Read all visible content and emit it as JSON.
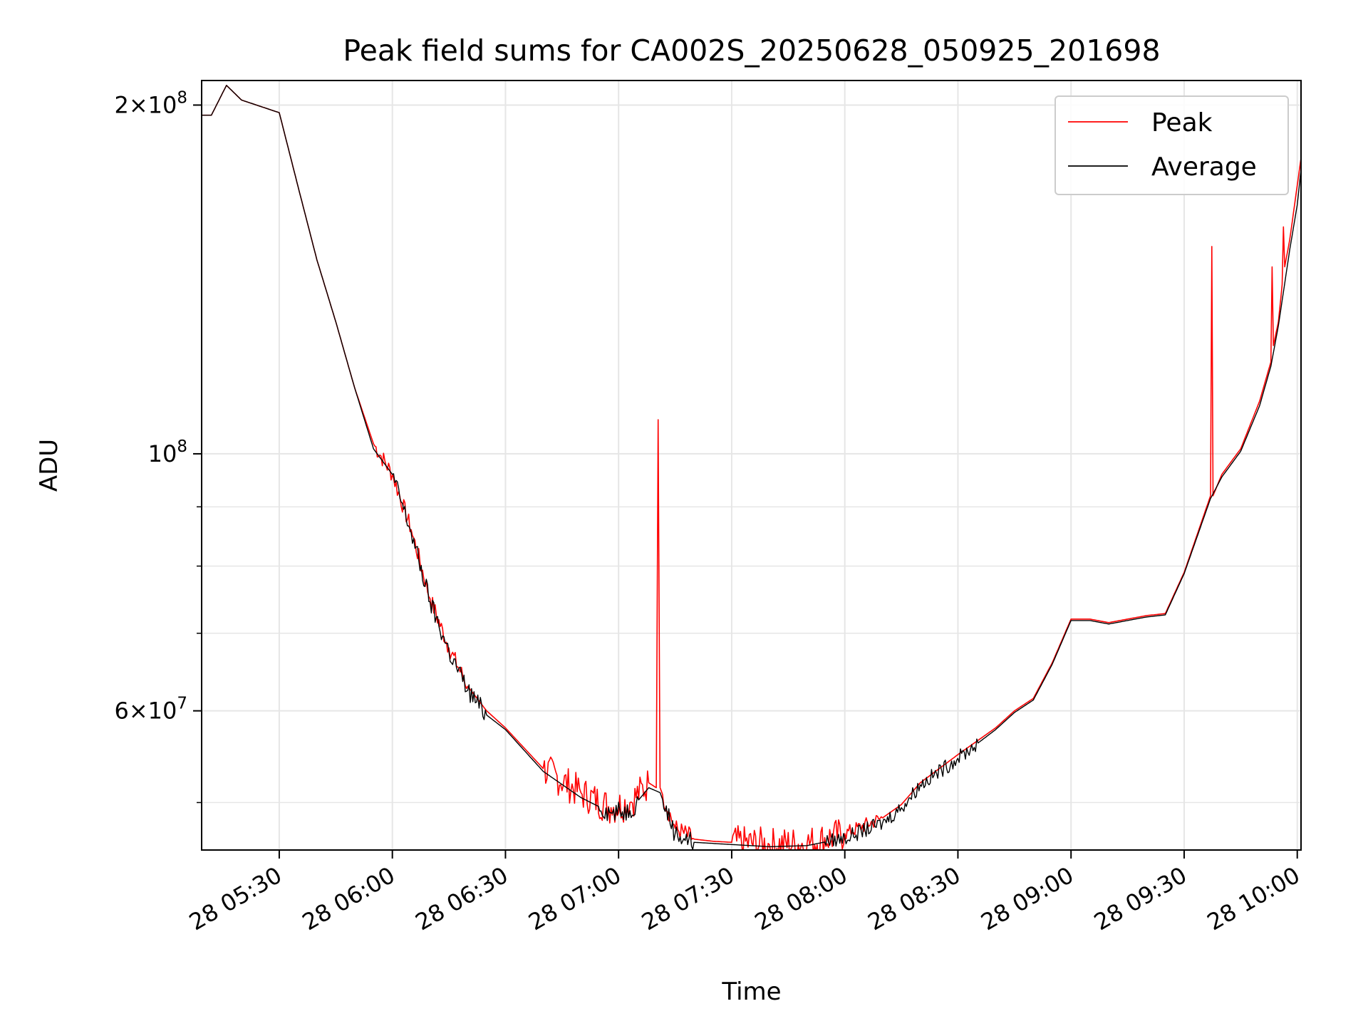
{
  "chart_data": {
    "type": "line",
    "title": "Peak field sums for CA002S_20250628_050925_201698",
    "xlabel": "Time",
    "ylabel": "ADU",
    "yscale": "log",
    "xlim": [
      "2025-06-28 05:09:25",
      "2025-06-28 10:01:00"
    ],
    "ylim": [
      45500000,
      210000000
    ],
    "grid": true,
    "legend_position": "top-right",
    "x_ticks": [
      {
        "t": "2025-06-28 05:30",
        "label": "28 05:30"
      },
      {
        "t": "2025-06-28 06:00",
        "label": "28 06:00"
      },
      {
        "t": "2025-06-28 06:30",
        "label": "28 06:30"
      },
      {
        "t": "2025-06-28 07:00",
        "label": "28 07:00"
      },
      {
        "t": "2025-06-28 07:30",
        "label": "28 07:30"
      },
      {
        "t": "2025-06-28 08:00",
        "label": "28 08:00"
      },
      {
        "t": "2025-06-28 08:30",
        "label": "28 08:30"
      },
      {
        "t": "2025-06-28 09:00",
        "label": "28 09:00"
      },
      {
        "t": "2025-06-28 09:30",
        "label": "28 09:30"
      },
      {
        "t": "2025-06-28 10:00",
        "label": "28 10:00"
      }
    ],
    "y_major_ticks": [
      {
        "value": 60000000,
        "mantissa": "6",
        "base": "10",
        "exp": "7"
      },
      {
        "value": 100000000,
        "mantissa": "",
        "base": "10",
        "exp": "8"
      },
      {
        "value": 200000000,
        "mantissa": "2",
        "base": "10",
        "exp": "8"
      }
    ],
    "y_minor_ticks": [
      50000000,
      70000000,
      80000000,
      90000000
    ],
    "series": [
      {
        "name": "Peak",
        "color": "#ff0000",
        "x": [
          "2025-06-28 05:09:25",
          "2025-06-28 05:12:00",
          "2025-06-28 05:16:00",
          "2025-06-28 05:20:00",
          "2025-06-28 05:30:00",
          "2025-06-28 05:35:00",
          "2025-06-28 05:40:00",
          "2025-06-28 05:45:00",
          "2025-06-28 05:50:00",
          "2025-06-28 05:55:00",
          "2025-06-28 06:00:00",
          "2025-06-28 06:05:00",
          "2025-06-28 06:10:00",
          "2025-06-28 06:15:00",
          "2025-06-28 06:20:00",
          "2025-06-28 06:25:00",
          "2025-06-28 06:30:00",
          "2025-06-28 06:40:00",
          "2025-06-28 06:50:00",
          "2025-06-28 06:58:00",
          "2025-06-28 07:03:00",
          "2025-06-28 07:08:00",
          "2025-06-28 07:10:00",
          "2025-06-28 07:10:30",
          "2025-06-28 07:11:00",
          "2025-06-28 07:15:00",
          "2025-06-28 07:20:00",
          "2025-06-28 07:25:00",
          "2025-06-28 07:30:00",
          "2025-06-28 07:40:00",
          "2025-06-28 07:50:00",
          "2025-06-28 08:00:00",
          "2025-06-28 08:10:00",
          "2025-06-28 08:15:00",
          "2025-06-28 08:20:00",
          "2025-06-28 08:30:00",
          "2025-06-28 08:40:00",
          "2025-06-28 08:45:00",
          "2025-06-28 08:50:00",
          "2025-06-28 08:55:00",
          "2025-06-28 09:00:00",
          "2025-06-28 09:05:00",
          "2025-06-28 09:10:00",
          "2025-06-28 09:20:00",
          "2025-06-28 09:25:00",
          "2025-06-28 09:30:00",
          "2025-06-28 09:37:00",
          "2025-06-28 09:37:20",
          "2025-06-28 09:37:40",
          "2025-06-28 09:40:00",
          "2025-06-28 09:45:00",
          "2025-06-28 09:50:00",
          "2025-06-28 09:53:00",
          "2025-06-28 09:53:20",
          "2025-06-28 09:53:40",
          "2025-06-28 09:55:00",
          "2025-06-28 09:56:00",
          "2025-06-28 09:56:20",
          "2025-06-28 09:56:40",
          "2025-06-28 09:58:00",
          "2025-06-28 10:01:00"
        ],
        "y": [
          196000000,
          196000000,
          208000000,
          202000000,
          197000000,
          170000000,
          147000000,
          130000000,
          114000000,
          102000000,
          96000000,
          86000000,
          75000000,
          68000000,
          63000000,
          60000000,
          58000000,
          53500000,
          51000000,
          49500000,
          50000000,
          52000000,
          51500000,
          107000000,
          51500000,
          47500000,
          46500000,
          46300000,
          46200000,
          46000000,
          46100000,
          47000000,
          48500000,
          49800000,
          52000000,
          55000000,
          58000000,
          60000000,
          61500000,
          66000000,
          72000000,
          72000000,
          71500000,
          72500000,
          72800000,
          79000000,
          92000000,
          151000000,
          92000000,
          96000000,
          101000000,
          111000000,
          120000000,
          145000000,
          124000000,
          130000000,
          140000000,
          157000000,
          145000000,
          153000000,
          180000000
        ],
        "noise_ranges": [
          {
            "from": "2025-06-28 05:55:00",
            "to": "2025-06-28 06:20:00",
            "amplitude": 0.018
          },
          {
            "from": "2025-06-28 06:40:00",
            "to": "2025-06-28 07:08:00",
            "amplitude": 0.035
          },
          {
            "from": "2025-06-28 07:12:00",
            "to": "2025-06-28 07:20:00",
            "amplitude": 0.02
          },
          {
            "from": "2025-06-28 07:30:00",
            "to": "2025-06-28 08:00:00",
            "amplitude": 0.035
          },
          {
            "from": "2025-06-28 08:00:00",
            "to": "2025-06-28 08:10:00",
            "amplitude": 0.015
          }
        ]
      },
      {
        "name": "Average",
        "color": "#000000",
        "x": [
          "2025-06-28 05:09:25",
          "2025-06-28 05:12:00",
          "2025-06-28 05:16:00",
          "2025-06-28 05:20:00",
          "2025-06-28 05:30:00",
          "2025-06-28 05:35:00",
          "2025-06-28 05:40:00",
          "2025-06-28 05:45:00",
          "2025-06-28 05:50:00",
          "2025-06-28 05:55:00",
          "2025-06-28 06:00:00",
          "2025-06-28 06:05:00",
          "2025-06-28 06:10:00",
          "2025-06-28 06:15:00",
          "2025-06-28 06:20:00",
          "2025-06-28 06:25:00",
          "2025-06-28 06:30:00",
          "2025-06-28 06:40:00",
          "2025-06-28 06:50:00",
          "2025-06-28 06:58:00",
          "2025-06-28 07:03:00",
          "2025-06-28 07:08:00",
          "2025-06-28 07:11:00",
          "2025-06-28 07:15:00",
          "2025-06-28 07:20:00",
          "2025-06-28 07:25:00",
          "2025-06-28 07:30:00",
          "2025-06-28 07:40:00",
          "2025-06-28 07:50:00",
          "2025-06-28 08:00:00",
          "2025-06-28 08:10:00",
          "2025-06-28 08:15:00",
          "2025-06-28 08:20:00",
          "2025-06-28 08:30:00",
          "2025-06-28 08:40:00",
          "2025-06-28 08:45:00",
          "2025-06-28 08:50:00",
          "2025-06-28 08:55:00",
          "2025-06-28 09:00:00",
          "2025-06-28 09:05:00",
          "2025-06-28 09:10:00",
          "2025-06-28 09:20:00",
          "2025-06-28 09:25:00",
          "2025-06-28 09:30:00",
          "2025-06-28 09:37:00",
          "2025-06-28 09:40:00",
          "2025-06-28 09:45:00",
          "2025-06-28 09:50:00",
          "2025-06-28 09:53:00",
          "2025-06-28 09:55:00",
          "2025-06-28 09:58:00",
          "2025-06-28 10:00:00",
          "2025-06-28 10:01:00"
        ],
        "y": [
          196000000,
          196000000,
          208000000,
          202000000,
          197000000,
          170000000,
          147000000,
          130000000,
          114000000,
          101000000,
          96000000,
          85500000,
          74500000,
          67500000,
          62500000,
          59500000,
          57800000,
          53200000,
          50500000,
          49000000,
          49200000,
          51500000,
          51000000,
          47000000,
          46200000,
          46100000,
          46000000,
          45800000,
          45900000,
          46600000,
          48000000,
          49500000,
          51800000,
          54600000,
          57800000,
          59800000,
          61300000,
          65800000,
          71800000,
          71800000,
          71300000,
          72300000,
          72600000,
          78800000,
          91500000,
          95500000,
          100500000,
          110000000,
          119000000,
          129000000,
          150000000,
          164000000,
          176000000
        ],
        "noise_ranges": [
          {
            "from": "2025-06-28 06:00:00",
            "to": "2025-06-28 06:25:00",
            "amplitude": 0.02
          },
          {
            "from": "2025-06-28 06:55:00",
            "to": "2025-06-28 07:05:00",
            "amplitude": 0.02
          },
          {
            "from": "2025-06-28 07:12:00",
            "to": "2025-06-28 07:20:00",
            "amplitude": 0.02
          },
          {
            "from": "2025-06-28 07:55:00",
            "to": "2025-06-28 08:35:00",
            "amplitude": 0.015
          }
        ]
      }
    ]
  }
}
